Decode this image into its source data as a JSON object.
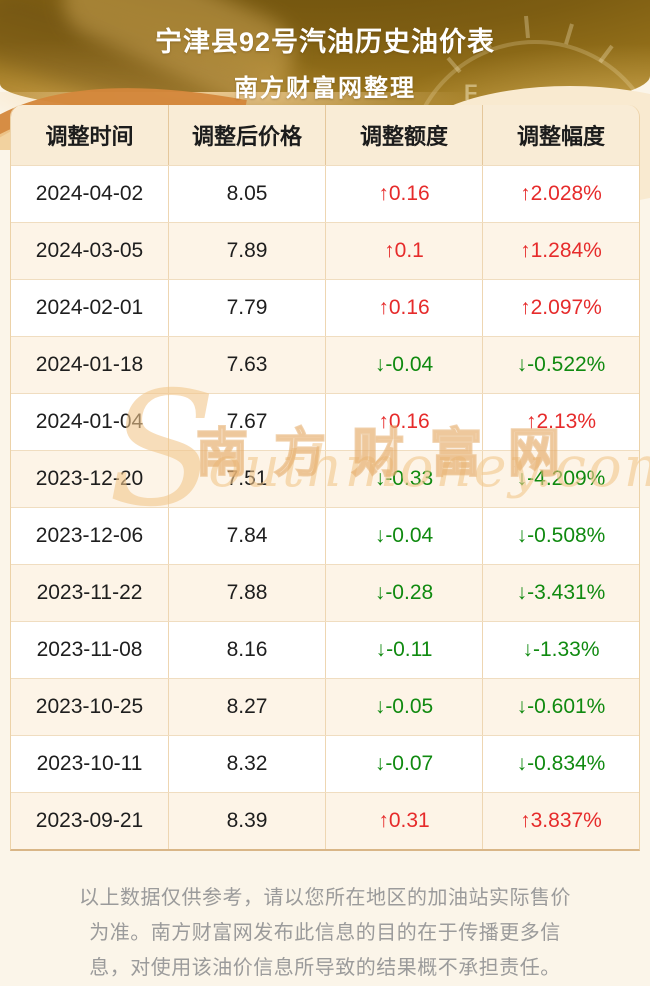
{
  "banner": {
    "title": "宁津县92号汽油历史油价表",
    "subtitle": "南方财富网整理",
    "gauge_full_label": "F"
  },
  "chart_data": {
    "type": "table",
    "title": "宁津县92号汽油历史油价表",
    "subtitle": "南方财富网整理",
    "columns": [
      "调整时间",
      "调整后价格",
      "调整额度",
      "调整幅度"
    ],
    "rows": [
      {
        "date": "2024-04-02",
        "price": "8.05",
        "change": "0.16",
        "pct": "2.028%",
        "direction": "up"
      },
      {
        "date": "2024-03-05",
        "price": "7.89",
        "change": "0.1",
        "pct": "1.284%",
        "direction": "up"
      },
      {
        "date": "2024-02-01",
        "price": "7.79",
        "change": "0.16",
        "pct": "2.097%",
        "direction": "up"
      },
      {
        "date": "2024-01-18",
        "price": "7.63",
        "change": "-0.04",
        "pct": "-0.522%",
        "direction": "down"
      },
      {
        "date": "2024-01-04",
        "price": "7.67",
        "change": "0.16",
        "pct": "2.13%",
        "direction": "up"
      },
      {
        "date": "2023-12-20",
        "price": "7.51",
        "change": "-0.33",
        "pct": "-4.209%",
        "direction": "down"
      },
      {
        "date": "2023-12-06",
        "price": "7.84",
        "change": "-0.04",
        "pct": "-0.508%",
        "direction": "down"
      },
      {
        "date": "2023-11-22",
        "price": "7.88",
        "change": "-0.28",
        "pct": "-3.431%",
        "direction": "down"
      },
      {
        "date": "2023-11-08",
        "price": "8.16",
        "change": "-0.11",
        "pct": "-1.33%",
        "direction": "down"
      },
      {
        "date": "2023-10-25",
        "price": "8.27",
        "change": "-0.05",
        "pct": "-0.601%",
        "direction": "down"
      },
      {
        "date": "2023-10-11",
        "price": "8.32",
        "change": "-0.07",
        "pct": "-0.834%",
        "direction": "down"
      },
      {
        "date": "2023-09-21",
        "price": "8.39",
        "change": "0.31",
        "pct": "3.837%",
        "direction": "up"
      }
    ],
    "up_arrow": "↑",
    "down_arrow": "↓",
    "up_color": "#e62b2b",
    "down_color": "#108a10"
  },
  "watermark": {
    "cn": "南方财富网",
    "en_s": "S",
    "en_rest": "outhmoney.com"
  },
  "footer": {
    "disclaimer": "以上数据仅供参考，请以您所在地区的加油站实际售价为准。南方财富网发布此信息的目的在于传播更多信息，对使用该油价信息所导致的结果概不承担责任。"
  }
}
